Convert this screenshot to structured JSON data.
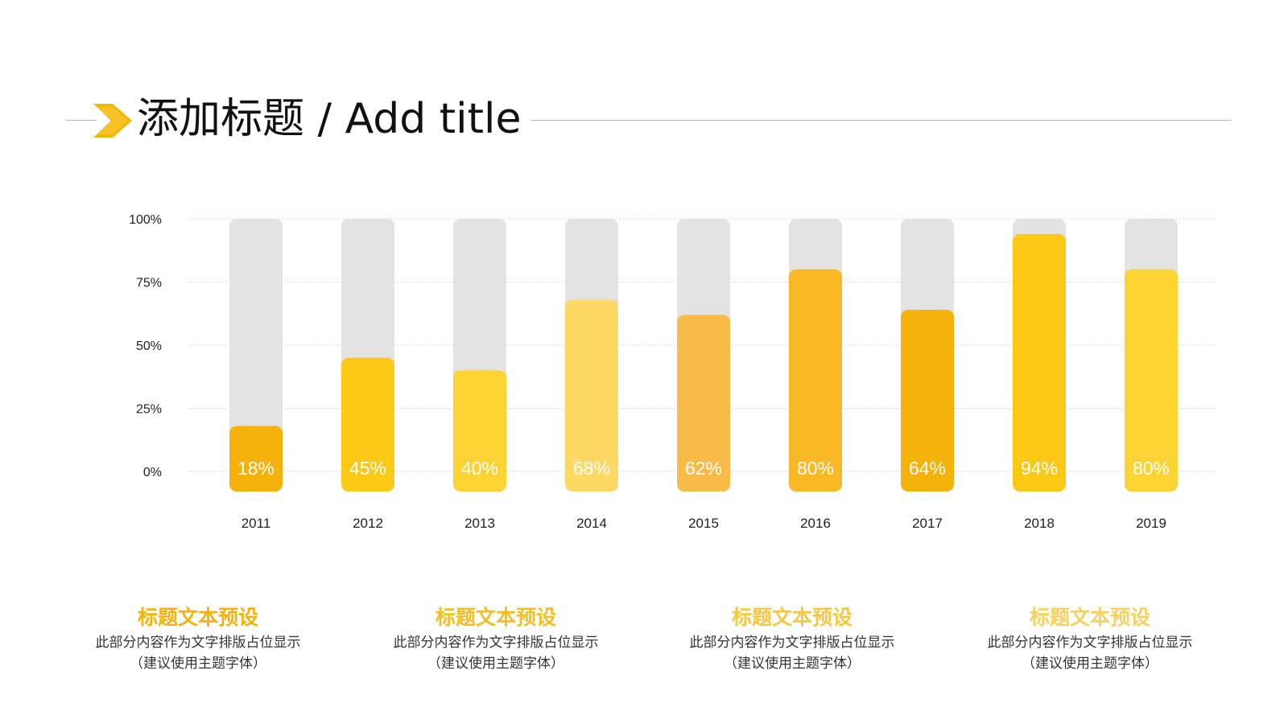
{
  "header": {
    "title": "添加标题 / Add title"
  },
  "colors": {
    "accent": "#f2b705",
    "track": "#e3e3e3",
    "grid": "#d9d9d9",
    "axis_text": "#222222",
    "value_label": "#ffffff",
    "card_title": "#f4b20b"
  },
  "icons": {
    "header_arrow": "chevron-right-icon"
  },
  "chart_data": {
    "type": "bar",
    "title": "",
    "xlabel": "",
    "ylabel": "",
    "ylim": [
      0,
      100
    ],
    "y_ticks": [
      0,
      25,
      50,
      75,
      100
    ],
    "y_tick_labels": [
      "0%",
      "25%",
      "50%",
      "75%",
      "100%"
    ],
    "grid": true,
    "categories": [
      "2011",
      "2012",
      "2013",
      "2014",
      "2015",
      "2016",
      "2017",
      "2018",
      "2019"
    ],
    "values": [
      18,
      45,
      40,
      68,
      62,
      80,
      64,
      94,
      80
    ],
    "value_labels": [
      "18%",
      "45%",
      "40%",
      "68%",
      "62%",
      "80%",
      "64%",
      "94%",
      "80%"
    ],
    "bar_colors": [
      "#f4b20b",
      "#fcc816",
      "#fcd333",
      "#fdd865",
      "#f8bb48",
      "#fbb825",
      "#f4b20b",
      "#fcc816",
      "#fcd333"
    ],
    "track_max": 100
  },
  "cards": [
    {
      "title": "标题文本预设",
      "body": "此部分内容作为文字排版占位显示",
      "note": "（建议使用主题字体）",
      "color": "#f4b20b"
    },
    {
      "title": "标题文本预设",
      "body": "此部分内容作为文字排版占位显示",
      "note": "（建议使用主题字体）",
      "color": "#f6bd1e"
    },
    {
      "title": "标题文本预设",
      "body": "此部分内容作为文字排版占位显示",
      "note": "（建议使用主题字体）",
      "color": "#f8c73d"
    },
    {
      "title": "标题文本预设",
      "body": "此部分内容作为文字排版占位显示",
      "note": "（建议使用主题字体）",
      "color": "#f9d15a"
    }
  ]
}
